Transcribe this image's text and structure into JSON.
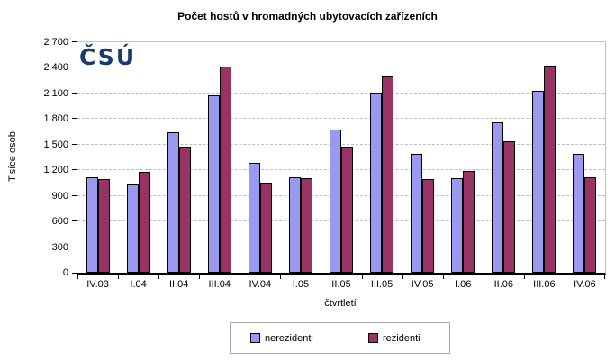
{
  "title": "Počet hostů v hromadných ubytovacích zařízeních",
  "logo_text": "ČSÚ",
  "colors": {
    "nerezidenti": "#9999f0",
    "rezidenti": "#993366",
    "logo": "#1c3a72",
    "gridline": "#bdbdbd",
    "plot_border": "#c0c0c0"
  },
  "chart_data": {
    "type": "bar",
    "title": "Počet hostů v hromadných ubytovacích zařízeních",
    "xlabel": "čtvrtletí",
    "ylabel": "Tisíce osob",
    "ylim": [
      0,
      2700
    ],
    "ytick_step": 300,
    "ytick_labels": [
      "0",
      "300",
      "600",
      "900",
      "1 200",
      "1 500",
      "1 800",
      "2 100",
      "2 400",
      "2 700"
    ],
    "grid": "horizontal dashed",
    "legend_position": "bottom",
    "categories": [
      "IV.03",
      "I.04",
      "II.04",
      "III.04",
      "IV.04",
      "I.05",
      "II.05",
      "III.05",
      "IV.05",
      "I.06",
      "II.06",
      "III.06",
      "IV.06"
    ],
    "series": [
      {
        "name": "nerezidenti",
        "color": "#9999f0",
        "values": [
          1120,
          1030,
          1650,
          2080,
          1290,
          1120,
          1680,
          2110,
          1390,
          1110,
          1760,
          2130,
          1390
        ]
      },
      {
        "name": "rezidenti",
        "color": "#993366",
        "values": [
          1100,
          1180,
          1480,
          2420,
          1050,
          1110,
          1480,
          2300,
          1100,
          1190,
          1540,
          2430,
          1120
        ]
      }
    ]
  }
}
